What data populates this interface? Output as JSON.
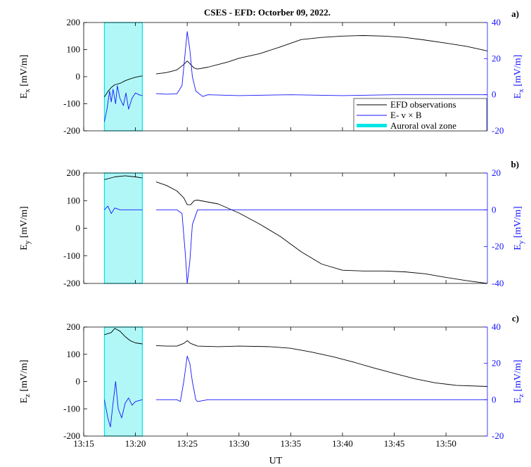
{
  "title": "CSES - EFD: Octorber 09, 2022.",
  "xlabel": "UT",
  "colors": {
    "observed": "#000000",
    "model": "#1414ff",
    "auroral": "#00e5e5",
    "right_axis": "#1414ff"
  },
  "legend": {
    "observed": "EFD observations",
    "model": "E- v  × B",
    "auroral": "Auroral oval zone",
    "position": "bottom-right of panel a"
  },
  "panel_labels": [
    "a)",
    "b)",
    "c)"
  ],
  "chart_data": [
    {
      "panel": "a)",
      "type": "line",
      "ylabel_left": "E_x [mV/m]",
      "ylabel_right": "E_x [mV/m]",
      "ylim_left": [
        -200,
        200
      ],
      "ylim_right": [
        -20,
        40
      ],
      "yticks_left": [
        "200",
        "100",
        "0",
        "-100",
        "-200"
      ],
      "yticks_right": [
        "40",
        "20",
        "0",
        "-20"
      ],
      "x_minutes_range": [
        "13:15",
        "13:54"
      ],
      "auroral_zone": [
        "13:17",
        "13:20:40"
      ],
      "series": [
        {
          "name": "EFD observations",
          "axis": "left",
          "segments": [
            [
              [
                "13:17",
                -75
              ],
              [
                "13:17:20",
                -55
              ],
              [
                "13:17:40",
                -40
              ],
              [
                "13:18",
                -30
              ],
              [
                "13:18:30",
                -25
              ],
              [
                "13:19",
                -15
              ],
              [
                "13:19:30",
                -8
              ],
              [
                "13:20",
                -2
              ],
              [
                "13:20:40",
                3
              ]
            ],
            [
              [
                "13:22",
                10
              ],
              [
                "13:23",
                15
              ],
              [
                "13:24",
                25
              ],
              [
                "13:24:40",
                45
              ],
              [
                "13:25",
                58
              ],
              [
                "13:25:20",
                45
              ],
              [
                "13:25:40",
                32
              ],
              [
                "13:26",
                28
              ],
              [
                "13:27",
                35
              ],
              [
                "13:28",
                45
              ],
              [
                "13:29",
                55
              ],
              [
                "13:30",
                68
              ],
              [
                "13:32",
                85
              ],
              [
                "13:34",
                110
              ],
              [
                "13:36",
                137
              ],
              [
                "13:38",
                145
              ],
              [
                "13:40",
                150
              ],
              [
                "13:42",
                152
              ],
              [
                "13:44",
                150
              ],
              [
                "13:46",
                145
              ],
              [
                "13:48",
                135
              ],
              [
                "13:50",
                124
              ],
              [
                "13:52",
                112
              ],
              [
                "13:54",
                95
              ]
            ]
          ]
        },
        {
          "name": "E- v  × B",
          "axis": "right",
          "segments": [
            [
              [
                "13:17",
                -15
              ],
              [
                "13:17:15",
                -8
              ],
              [
                "13:17:30",
                2
              ],
              [
                "13:17:40",
                -4
              ],
              [
                "13:17:50",
                3
              ],
              [
                "13:18:05",
                -5
              ],
              [
                "13:18:15",
                5
              ],
              [
                "13:18:30",
                -2
              ],
              [
                "13:18:50",
                -6
              ],
              [
                "13:19:05",
                1
              ],
              [
                "13:19:20",
                -8
              ],
              [
                "13:19:40",
                -2
              ],
              [
                "13:20",
                1
              ],
              [
                "13:20:20",
                0
              ],
              [
                "13:20:40",
                -0.5
              ]
            ],
            [
              [
                "13:22",
                0.6
              ],
              [
                "13:23",
                0.3
              ],
              [
                "13:24",
                0.5
              ],
              [
                "13:24:30",
                5
              ],
              [
                "13:24:50",
                25
              ],
              [
                "13:25",
                35
              ],
              [
                "13:25:15",
                25
              ],
              [
                "13:25:30",
                10
              ],
              [
                "13:25:50",
                2
              ],
              [
                "13:26:30",
                -1
              ],
              [
                "13:27",
                0
              ],
              [
                "13:30",
                -0.5
              ],
              [
                "13:35",
                0
              ],
              [
                "13:40",
                -0.5
              ],
              [
                "13:45",
                0
              ],
              [
                "13:50",
                0
              ],
              [
                "13:54",
                0
              ]
            ]
          ]
        }
      ]
    },
    {
      "panel": "b)",
      "type": "line",
      "ylabel_left": "E_y [mV/m]",
      "ylabel_right": "E_y [mV/m]",
      "ylim_left": [
        -200,
        200
      ],
      "ylim_right": [
        -40,
        20
      ],
      "yticks_left": [
        "200",
        "100",
        "0",
        "-100",
        "-200"
      ],
      "yticks_right": [
        "20",
        "0",
        "-20",
        "-40"
      ],
      "x_minutes_range": [
        "13:15",
        "13:54"
      ],
      "auroral_zone": [
        "13:17",
        "13:20:40"
      ],
      "series": [
        {
          "name": "EFD observations",
          "axis": "left",
          "segments": [
            [
              [
                "13:17",
                176
              ],
              [
                "13:18",
                186
              ],
              [
                "13:19",
                190
              ],
              [
                "13:20",
                186
              ],
              [
                "13:20:40",
                182
              ]
            ],
            [
              [
                "13:22",
                168
              ],
              [
                "13:23",
                155
              ],
              [
                "13:24",
                135
              ],
              [
                "13:24:40",
                110
              ],
              [
                "13:25",
                85
              ],
              [
                "13:25:20",
                85
              ],
              [
                "13:25:40",
                100
              ],
              [
                "13:26",
                102
              ],
              [
                "13:28",
                88
              ],
              [
                "13:30",
                55
              ],
              [
                "13:32",
                15
              ],
              [
                "13:34",
                -30
              ],
              [
                "13:36",
                -85
              ],
              [
                "13:38",
                -130
              ],
              [
                "13:40",
                -152
              ],
              [
                "13:42",
                -155
              ],
              [
                "13:44",
                -155
              ],
              [
                "13:46",
                -158
              ],
              [
                "13:48",
                -165
              ],
              [
                "13:50",
                -178
              ],
              [
                "13:52",
                -190
              ],
              [
                "13:54",
                -200
              ]
            ]
          ]
        },
        {
          "name": "E- v  × B",
          "axis": "right",
          "segments": [
            [
              [
                "13:17",
                0
              ],
              [
                "13:17:20",
                2
              ],
              [
                "13:17:40",
                -2
              ],
              [
                "13:18",
                1
              ],
              [
                "13:18:30",
                0
              ],
              [
                "13:20:40",
                0
              ]
            ],
            [
              [
                "13:22",
                0
              ],
              [
                "13:24",
                0
              ],
              [
                "13:24:30",
                -2
              ],
              [
                "13:24:50",
                -25
              ],
              [
                "13:25",
                -40
              ],
              [
                "13:25:15",
                -28
              ],
              [
                "13:25:30",
                -8
              ],
              [
                "13:26",
                0
              ],
              [
                "13:30",
                0
              ],
              [
                "13:40",
                0
              ],
              [
                "13:45",
                0
              ],
              [
                "13:50",
                0
              ],
              [
                "13:54",
                0
              ]
            ]
          ]
        }
      ]
    },
    {
      "panel": "c)",
      "type": "line",
      "ylabel_left": "E_z [mV/m]",
      "ylabel_right": "E_z [mV/m]",
      "ylim_left": [
        -200,
        200
      ],
      "ylim_right": [
        -20,
        40
      ],
      "yticks_left": [
        "200",
        "100",
        "0",
        "-100",
        "-200"
      ],
      "yticks_right": [
        "40",
        "20",
        "0",
        "-20"
      ],
      "x_minutes_range": [
        "13:15",
        "13:54"
      ],
      "auroral_zone": [
        "13:17",
        "13:20:40"
      ],
      "series": [
        {
          "name": "EFD observations",
          "axis": "left",
          "segments": [
            [
              [
                "13:17",
                172
              ],
              [
                "13:17:40",
                180
              ],
              [
                "13:18",
                195
              ],
              [
                "13:18:30",
                185
              ],
              [
                "13:19",
                165
              ],
              [
                "13:19:30",
                150
              ],
              [
                "13:20",
                142
              ],
              [
                "13:20:40",
                138
              ]
            ],
            [
              [
                "13:22",
                132
              ],
              [
                "13:23",
                130
              ],
              [
                "13:24",
                130
              ],
              [
                "13:24:40",
                140
              ],
              [
                "13:25",
                150
              ],
              [
                "13:25:20",
                140
              ],
              [
                "13:26",
                130
              ],
              [
                "13:28",
                128
              ],
              [
                "13:30",
                130
              ],
              [
                "13:33",
                128
              ],
              [
                "13:35",
                122
              ],
              [
                "13:37",
                108
              ],
              [
                "13:39",
                92
              ],
              [
                "13:41",
                72
              ],
              [
                "13:43",
                50
              ],
              [
                "13:45",
                30
              ],
              [
                "13:47",
                10
              ],
              [
                "13:49",
                -5
              ],
              [
                "13:51",
                -14
              ],
              [
                "13:54",
                -18
              ]
            ]
          ]
        },
        {
          "name": "E- v  × B",
          "axis": "right",
          "segments": [
            [
              [
                "13:17",
                0
              ],
              [
                "13:17:20",
                -10
              ],
              [
                "13:17:35",
                -15
              ],
              [
                "13:17:50",
                -2
              ],
              [
                "13:18:05",
                10
              ],
              [
                "13:18:20",
                -5
              ],
              [
                "13:18:40",
                -10
              ],
              [
                "13:19",
                -2
              ],
              [
                "13:19:20",
                1
              ],
              [
                "13:19:40",
                -3
              ],
              [
                "13:20",
                -1
              ],
              [
                "13:20:40",
                0
              ]
            ],
            [
              [
                "13:22",
                0
              ],
              [
                "13:24",
                0
              ],
              [
                "13:24:20",
                -1
              ],
              [
                "13:24:40",
                10
              ],
              [
                "13:25",
                24
              ],
              [
                "13:25:15",
                20
              ],
              [
                "13:25:30",
                10
              ],
              [
                "13:25:50",
                0
              ],
              [
                "13:26",
                -1
              ],
              [
                "13:27",
                0
              ],
              [
                "13:30",
                0
              ],
              [
                "13:40",
                0
              ],
              [
                "13:50",
                0
              ],
              [
                "13:54",
                0
              ]
            ]
          ]
        }
      ]
    }
  ],
  "xticks": [
    "13:15",
    "13:20",
    "13:25",
    "13:30",
    "13:35",
    "13:40",
    "13:45",
    "13:50"
  ]
}
